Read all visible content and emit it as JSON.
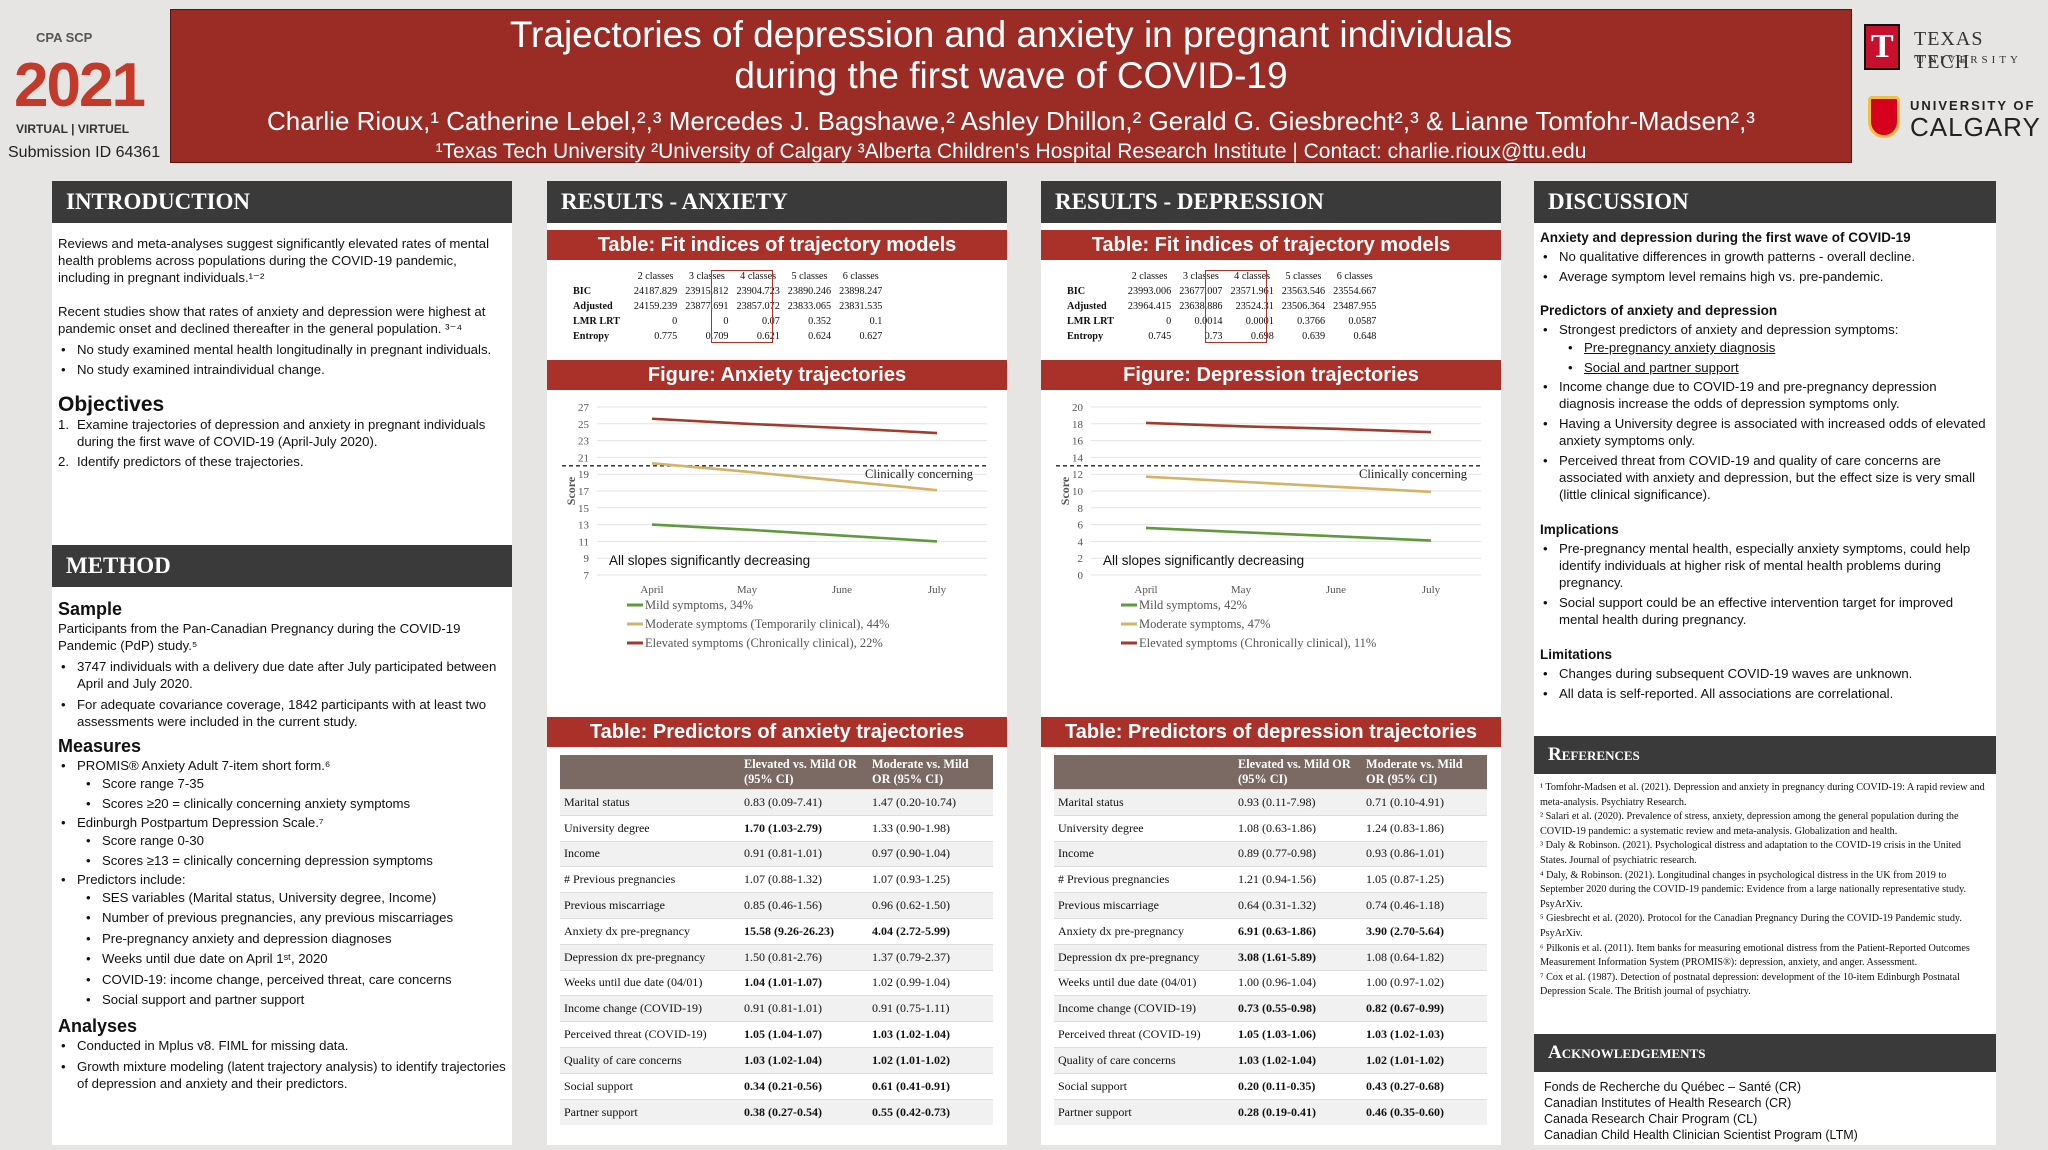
{
  "header": {
    "title_line1": "Trajectories of depression and anxiety in pregnant individuals",
    "title_line2": "during the first wave of COVID-19",
    "authors": "Charlie Rioux,¹ Catherine Lebel,²,³ Mercedes J. Bagshawe,² Ashley Dhillon,² Gerald G. Giesbrecht²,³ & Lianne Tomfohr-Madsen²,³",
    "affiliations": "¹Texas Tech University ²University of Calgary ³Alberta Children's Hospital Research Institute | Contact: charlie.rioux@ttu.edu",
    "submission_id": "Submission ID 64361",
    "conf_logo": {
      "org": "CPA SCP",
      "year": "2021",
      "sub": "VIRTUAL | VIRTUEL"
    },
    "ttu_logo": {
      "line1": "TEXAS TECH",
      "line2": "UNIVERSITY"
    },
    "uc_logo": {
      "line1": "UNIVERSITY OF",
      "line2": "CALGARY"
    }
  },
  "intro": {
    "heading": "INTRODUCTION",
    "p1": "Reviews and meta-analyses suggest significantly elevated rates of mental health problems across populations during the COVID-19 pandemic, including in pregnant individuals.¹⁻²",
    "p2": "Recent studies show that rates of anxiety and depression were highest at pandemic onset and declined thereafter in the general population. ³⁻⁴",
    "bullets": [
      "No study examined mental health longitudinally in pregnant individuals.",
      "No study examined intraindividual change."
    ],
    "objectives_heading": "Objectives",
    "objectives": [
      {
        "num": "1.",
        "text": "Examine trajectories of depression and anxiety in pregnant individuals during the first wave of COVID-19 (April-July 2020)."
      },
      {
        "num": "2.",
        "text": "Identify predictors of these trajectories."
      }
    ]
  },
  "method": {
    "heading": "METHOD",
    "sample_heading": "Sample",
    "sample_p": "Participants from the Pan-Canadian Pregnancy during the COVID-19 Pandemic (PdP) study.⁵",
    "sample_bullets": [
      "3747 individuals with a delivery due date after July participated between April and July 2020.",
      "For adequate covariance coverage, 1842 participants with at least two assessments were included in the current study."
    ],
    "measures_heading": "Measures",
    "m1": "PROMIS® Anxiety Adult 7-item short form.⁶",
    "m1_sub": [
      "Score range 7-35",
      "Scores  ≥20 = clinically concerning anxiety symptoms"
    ],
    "m2": "Edinburgh Postpartum Depression Scale.⁷",
    "m2_sub": [
      "Score range 0-30",
      "Scores ≥13 = clinically concerning depression symptoms"
    ],
    "m3": "Predictors include:",
    "m3_sub": [
      "SES variables (Marital status, University degree, Income)",
      "Number of previous pregnancies, any previous miscarriages",
      "Pre-pregnancy anxiety and depression diagnoses",
      "Weeks until due date on April 1ˢᵗ, 2020",
      "COVID-19: income change, perceived threat, care concerns",
      "Social support and partner support"
    ],
    "analyses_heading": "Analyses",
    "analyses": [
      "Conducted in Mplus v8. FIML for missing data.",
      "Growth mixture modeling (latent trajectory analysis) to identify trajectories of depression and anxiety and their predictors."
    ]
  },
  "anxiety": {
    "heading": "RESULTS - ANXIETY",
    "fit_title": "Table: Fit indices of trajectory models",
    "fit_cols": [
      "",
      "2 classes",
      "3 classes",
      "4 classes",
      "5 classes",
      "6 classes"
    ],
    "fit_rows": [
      [
        "BIC",
        "24187.829",
        "23915.812",
        "23904.723",
        "23890.246",
        "23898.247"
      ],
      [
        "Adjusted",
        "24159.239",
        "23877.691",
        "23857.072",
        "23833.065",
        "23831.535"
      ],
      [
        "LMR LRT",
        "0",
        "0",
        "0.07",
        "0.352",
        "0.1"
      ],
      [
        "Entropy",
        "0.775",
        "0.709",
        "0.621",
        "0.624",
        "0.627"
      ]
    ],
    "fig_title": "Figure: Anxiety trajectories",
    "pred_title": "Table: Predictors of anxiety trajectories",
    "pred_cols": [
      "",
      "Elevated vs. Mild OR (95% CI)",
      "Moderate vs. Mild OR (95% CI)"
    ],
    "pred_rows": [
      [
        "Marital status",
        "0.83 (0.09-7.41)",
        "1.47 (0.20-10.74)"
      ],
      [
        "University degree",
        "1.70 (1.03-2.79)",
        "1.33 (0.90-1.98)"
      ],
      [
        "Income",
        "0.91 (0.81-1.01)",
        "0.97 (0.90-1.04)"
      ],
      [
        "# Previous pregnancies",
        "1.07 (0.88-1.32)",
        "1.07 (0.93-1.25)"
      ],
      [
        "Previous miscarriage",
        "0.85 (0.46-1.56)",
        "0.96 (0.62-1.50)"
      ],
      [
        "Anxiety dx pre-pregnancy",
        "15.58 (9.26-26.23)",
        "4.04 (2.72-5.99)"
      ],
      [
        "Depression dx pre-pregnancy",
        "1.50 (0.81-2.76)",
        "1.37 (0.79-2.37)"
      ],
      [
        "Weeks until due date (04/01)",
        "1.04 (1.01-1.07)",
        "1.02 (0.99-1.04)"
      ],
      [
        "Income change (COVID-19)",
        "0.91 (0.81-1.01)",
        "0.91 (0.75-1.11)"
      ],
      [
        "Perceived threat (COVID-19)",
        "1.05 (1.04-1.07)",
        "1.03 (1.02-1.04)"
      ],
      [
        "Quality of care concerns",
        "1.03 (1.02-1.04)",
        "1.02 (1.01-1.02)"
      ],
      [
        "Social support",
        "0.34 (0.21-0.56)",
        "0.61 (0.41-0.91)"
      ],
      [
        "Partner support",
        "0.38 (0.27-0.54)",
        "0.55 (0.42-0.73)"
      ]
    ],
    "pred_bold": [
      [
        false,
        false
      ],
      [
        true,
        false
      ],
      [
        false,
        false
      ],
      [
        false,
        false
      ],
      [
        false,
        false
      ],
      [
        true,
        true
      ],
      [
        false,
        false
      ],
      [
        true,
        false
      ],
      [
        false,
        false
      ],
      [
        true,
        true
      ],
      [
        true,
        true
      ],
      [
        true,
        true
      ],
      [
        true,
        true
      ]
    ]
  },
  "depression": {
    "heading": "RESULTS - DEPRESSION",
    "fit_title": "Table: Fit indices of trajectory models",
    "fit_cols": [
      "",
      "2 classes",
      "3 classes",
      "4 classes",
      "5 classes",
      "6 classes"
    ],
    "fit_rows": [
      [
        "BIC",
        "23993.006",
        "23677.007",
        "23571.961",
        "23563.546",
        "23554.667"
      ],
      [
        "Adjusted",
        "23964.415",
        "23638.886",
        "23524.31",
        "23506.364",
        "23487.955"
      ],
      [
        "LMR LRT",
        "0",
        "0.0014",
        "0.0001",
        "0.3766",
        "0.0587"
      ],
      [
        "Entropy",
        "0.745",
        "0.73",
        "0.698",
        "0.639",
        "0.648"
      ]
    ],
    "fig_title": "Figure: Depression trajectories",
    "pred_title": "Table: Predictors of depression trajectories",
    "pred_cols": [
      "",
      "Elevated vs. Mild OR (95% CI)",
      "Moderate vs. Mild OR (95% CI)"
    ],
    "pred_rows": [
      [
        "Marital status",
        "0.93 (0.11-7.98)",
        "0.71 (0.10-4.91)"
      ],
      [
        "University degree",
        "1.08 (0.63-1.86)",
        "1.24 (0.83-1.86)"
      ],
      [
        "Income",
        "0.89 (0.77-0.98)",
        "0.93 (0.86-1.01)"
      ],
      [
        "# Previous pregnancies",
        "1.21 (0.94-1.56)",
        "1.05 (0.87-1.25)"
      ],
      [
        "Previous miscarriage",
        "0.64 (0.31-1.32)",
        "0.74 (0.46-1.18)"
      ],
      [
        "Anxiety dx pre-pregnancy",
        "6.91 (0.63-1.86)",
        "3.90 (2.70-5.64)"
      ],
      [
        "Depression dx pre-pregnancy",
        "3.08 (1.61-5.89)",
        "1.08 (0.64-1.82)"
      ],
      [
        "Weeks until due date (04/01)",
        "1.00 (0.96-1.04)",
        "1.00 (0.97-1.02)"
      ],
      [
        "Income change (COVID-19)",
        "0.73 (0.55-0.98)",
        "0.82 (0.67-0.99)"
      ],
      [
        "Perceived threat (COVID-19)",
        "1.05 (1.03-1.06)",
        "1.03 (1.02-1.03)"
      ],
      [
        "Quality of care concerns",
        "1.03 (1.02-1.04)",
        "1.02 (1.01-1.02)"
      ],
      [
        "Social support",
        "0.20 (0.11-0.35)",
        "0.43 (0.27-0.68)"
      ],
      [
        "Partner support",
        "0.28 (0.19-0.41)",
        "0.46 (0.35-0.60)"
      ]
    ],
    "pred_bold": [
      [
        false,
        false
      ],
      [
        false,
        false
      ],
      [
        false,
        false
      ],
      [
        false,
        false
      ],
      [
        false,
        false
      ],
      [
        true,
        true
      ],
      [
        true,
        false
      ],
      [
        false,
        false
      ],
      [
        true,
        true
      ],
      [
        true,
        true
      ],
      [
        true,
        true
      ],
      [
        true,
        true
      ],
      [
        true,
        true
      ]
    ]
  },
  "chart_data": [
    {
      "type": "line",
      "x": [
        "April",
        "May",
        "June",
        "July"
      ],
      "ylabel": "Score",
      "ylim": [
        7,
        27
      ],
      "yticks": [
        7,
        9,
        11,
        13,
        15,
        17,
        19,
        21,
        23,
        25,
        27
      ],
      "threshold": {
        "value": 20,
        "label": "Clinically concerning"
      },
      "annotation": "All slopes significantly decreasing",
      "series": [
        {
          "name": "Mild symptoms, 34%",
          "color": "#5f9a3c",
          "values": [
            13.0,
            12.4,
            11.7,
            11.0
          ]
        },
        {
          "name": "Moderate symptoms (Temporarily clinical), 44%",
          "color": "#d4b266",
          "values": [
            20.3,
            19.3,
            18.2,
            17.1
          ]
        },
        {
          "name": "Elevated symptoms (Chronically clinical), 22%",
          "color": "#a13b2e",
          "values": [
            25.6,
            25.0,
            24.5,
            23.9
          ]
        }
      ]
    },
    {
      "type": "line",
      "x": [
        "April",
        "May",
        "June",
        "July"
      ],
      "ylabel": "Score",
      "ylim": [
        0,
        20
      ],
      "yticks": [
        0,
        2,
        4,
        6,
        8,
        10,
        12,
        14,
        16,
        18,
        20
      ],
      "threshold": {
        "value": 13,
        "label": "Clinically concerning"
      },
      "annotation": "All slopes significantly decreasing",
      "series": [
        {
          "name": "Mild symptoms, 42%",
          "color": "#5f9a3c",
          "values": [
            5.6,
            5.1,
            4.6,
            4.1
          ]
        },
        {
          "name": "Moderate symptoms, 47%",
          "color": "#d4b266",
          "values": [
            11.7,
            11.1,
            10.5,
            9.9
          ]
        },
        {
          "name": "Elevated symptoms (Chronically clinical), 11%",
          "color": "#a13b2e",
          "values": [
            18.1,
            17.7,
            17.4,
            17.0
          ]
        }
      ]
    }
  ],
  "discussion": {
    "heading": "DISCUSSION",
    "h1": "Anxiety and depression during the first wave of COVID-19",
    "b1": [
      "No qualitative differences in growth patterns - overall decline.",
      "Average symptom level remains high vs. pre-pandemic."
    ],
    "h2": "Predictors of anxiety and depression",
    "b2_first": "Strongest predictors of anxiety and depression symptoms:",
    "b2_sub": [
      "Pre-pregnancy anxiety diagnosis",
      "Social and partner support"
    ],
    "b2_rest": [
      "Income change due to COVID-19 and pre-pregnancy depression diagnosis increase the odds of depression symptoms only.",
      "Having a University degree is associated with increased odds of elevated anxiety symptoms only.",
      "Perceived threat from COVID-19 and quality of care concerns are associated with anxiety and depression, but the effect size is very small (little clinical significance)."
    ],
    "h3": "Implications",
    "b3": [
      "Pre-pregnancy mental health, especially anxiety symptoms, could help identify individuals at higher risk of mental health problems during pregnancy.",
      "Social support could be an effective intervention target for improved mental health during pregnancy."
    ],
    "h4": "Limitations",
    "b4": [
      "Changes during subsequent COVID-19 waves are unknown.",
      "All data is self-reported. All associations are correlational."
    ]
  },
  "references": {
    "heading": "References",
    "items": [
      "¹ Tomfohr-Madsen et al. (2021). Depression and anxiety in pregnancy during COVID-19: A rapid review and meta-analysis. Psychiatry Research.",
      "² Salari et al. (2020). Prevalence of stress, anxiety, depression among the general population during the COVID-19 pandemic: a systematic review and meta-analysis. Globalization and health.",
      "³ Daly & Robinson. (2021). Psychological distress and adaptation to the COVID-19 crisis in the United States. Journal of psychiatric research.",
      "⁴ Daly, & Robinson. (2021). Longitudinal changes in psychological distress in the UK from 2019 to September 2020 during the COVID-19 pandemic: Evidence from a large nationally representative study. PsyArXiv.",
      "⁵ Giesbrecht et al. (2020). Protocol for the Canadian Pregnancy During the COVID-19 Pandemic study. PsyArXiv.",
      "⁶ Pilkonis et al. (2011). Item banks for measuring emotional distress from the Patient-Reported Outcomes Measurement Information System (PROMIS®): depression, anxiety, and anger. Assessment.",
      "⁷ Cox et al. (1987). Detection of postnatal depression: development of the 10-item Edinburgh Postnatal Depression Scale. The British journal of psychiatry."
    ]
  },
  "acknowledgements": {
    "heading": "Acknowledgements",
    "items": [
      "Fonds de Recherche du Québec – Santé (CR)",
      "Canadian Institutes of Health Research (CR)",
      "Canada Research Chair Program (CL)",
      "Canadian Child Health Clinician Scientist Program (LTM)"
    ]
  }
}
